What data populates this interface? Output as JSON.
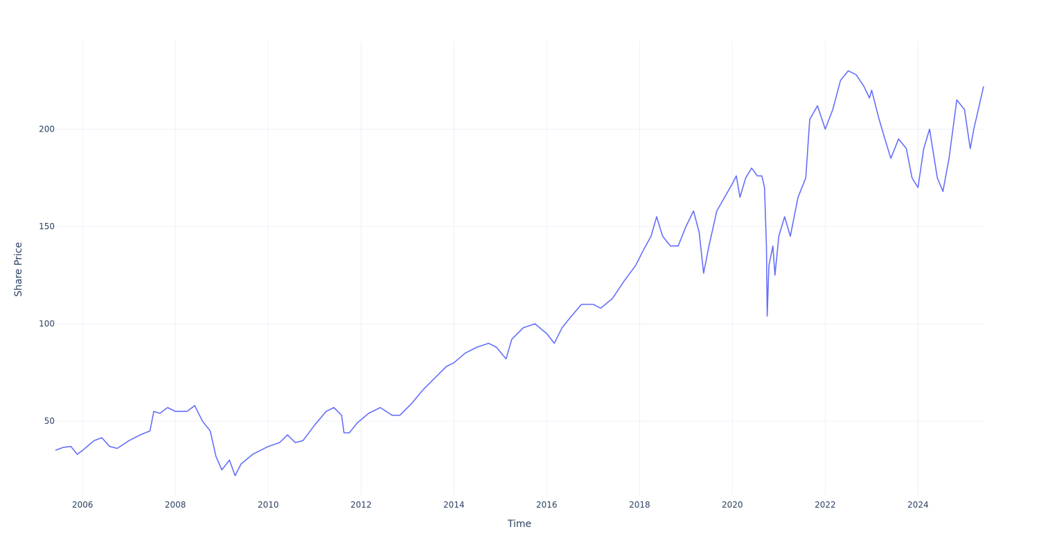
{
  "chart_data": {
    "type": "line",
    "title": "",
    "xlabel": "Time",
    "ylabel": "Share Price",
    "x_axis_type": "date",
    "xlim": [
      "2005-06-01",
      "2025-05-31"
    ],
    "ylim": [
      12,
      245
    ],
    "x_ticks": [
      "2006",
      "2008",
      "2010",
      "2012",
      "2014",
      "2016",
      "2018",
      "2020",
      "2022",
      "2024"
    ],
    "y_ticks": [
      50,
      100,
      150,
      200
    ],
    "grid": true,
    "legend": "none",
    "series": [
      {
        "color": "#636efa",
        "points": [
          [
            "2005-06-01",
            35
          ],
          [
            "2005-08-01",
            36.5
          ],
          [
            "2005-10-01",
            37
          ],
          [
            "2005-11-20",
            33
          ],
          [
            "2006-01-01",
            35
          ],
          [
            "2006-04-01",
            40
          ],
          [
            "2006-06-01",
            41.5
          ],
          [
            "2006-08-01",
            37
          ],
          [
            "2006-10-01",
            36
          ],
          [
            "2007-01-01",
            40
          ],
          [
            "2007-04-01",
            43
          ],
          [
            "2007-06-15",
            45
          ],
          [
            "2007-07-15",
            55
          ],
          [
            "2007-09-01",
            54
          ],
          [
            "2007-11-01",
            57
          ],
          [
            "2008-01-01",
            55
          ],
          [
            "2008-04-01",
            55
          ],
          [
            "2008-06-01",
            58
          ],
          [
            "2008-08-01",
            50
          ],
          [
            "2008-10-01",
            45
          ],
          [
            "2008-11-15",
            32
          ],
          [
            "2009-01-01",
            25
          ],
          [
            "2009-03-01",
            30
          ],
          [
            "2009-04-15",
            22
          ],
          [
            "2009-06-01",
            28
          ],
          [
            "2009-09-01",
            33
          ],
          [
            "2010-01-01",
            37
          ],
          [
            "2010-04-01",
            39
          ],
          [
            "2010-06-01",
            43
          ],
          [
            "2010-08-01",
            39
          ],
          [
            "2010-10-01",
            40
          ],
          [
            "2011-01-01",
            48
          ],
          [
            "2011-04-01",
            55
          ],
          [
            "2011-06-01",
            57
          ],
          [
            "2011-08-01",
            53
          ],
          [
            "2011-08-20",
            44
          ],
          [
            "2011-10-01",
            44
          ],
          [
            "2011-12-01",
            49
          ],
          [
            "2012-03-01",
            54
          ],
          [
            "2012-06-01",
            57
          ],
          [
            "2012-09-01",
            53
          ],
          [
            "2012-11-01",
            53
          ],
          [
            "2013-02-01",
            59
          ],
          [
            "2013-05-01",
            66
          ],
          [
            "2013-08-01",
            72
          ],
          [
            "2013-11-01",
            78
          ],
          [
            "2014-01-01",
            80
          ],
          [
            "2014-04-01",
            85
          ],
          [
            "2014-07-01",
            88
          ],
          [
            "2014-10-01",
            90
          ],
          [
            "2014-12-01",
            88
          ],
          [
            "2015-02-15",
            82
          ],
          [
            "2015-04-01",
            92
          ],
          [
            "2015-07-01",
            98
          ],
          [
            "2015-10-01",
            100
          ],
          [
            "2016-01-01",
            95
          ],
          [
            "2016-03-01",
            90
          ],
          [
            "2016-05-01",
            98
          ],
          [
            "2016-07-01",
            103
          ],
          [
            "2016-10-01",
            110
          ],
          [
            "2017-01-01",
            110
          ],
          [
            "2017-03-01",
            108
          ],
          [
            "2017-06-01",
            113
          ],
          [
            "2017-09-01",
            122
          ],
          [
            "2017-12-01",
            130
          ],
          [
            "2018-02-01",
            138
          ],
          [
            "2018-04-01",
            145
          ],
          [
            "2018-05-15",
            155
          ],
          [
            "2018-07-01",
            145
          ],
          [
            "2018-09-01",
            140
          ],
          [
            "2018-11-01",
            140
          ],
          [
            "2019-01-01",
            150
          ],
          [
            "2019-03-01",
            158
          ],
          [
            "2019-04-15",
            147
          ],
          [
            "2019-05-20",
            126
          ],
          [
            "2019-07-01",
            140
          ],
          [
            "2019-09-01",
            158
          ],
          [
            "2019-11-01",
            165
          ],
          [
            "2020-01-01",
            172
          ],
          [
            "2020-02-01",
            176
          ],
          [
            "2020-03-01",
            165
          ],
          [
            "2020-04-15",
            175
          ],
          [
            "2020-06-01",
            180
          ],
          [
            "2020-07-15",
            176
          ],
          [
            "2020-08-20",
            176
          ],
          [
            "2020-09-10",
            170
          ],
          [
            "2020-09-25",
            140
          ],
          [
            "2020-10-01",
            104
          ],
          [
            "2020-10-15",
            130
          ],
          [
            "2020-11-15",
            140
          ],
          [
            "2020-12-01",
            125
          ],
          [
            "2021-01-01",
            145
          ],
          [
            "2021-02-15",
            155
          ],
          [
            "2021-04-01",
            145
          ],
          [
            "2021-06-01",
            165
          ],
          [
            "2021-08-01",
            175
          ],
          [
            "2021-09-01",
            205
          ],
          [
            "2021-11-01",
            212
          ],
          [
            "2022-01-01",
            200
          ],
          [
            "2022-03-01",
            210
          ],
          [
            "2022-05-01",
            225
          ],
          [
            "2022-07-01",
            230
          ],
          [
            "2022-09-01",
            228
          ],
          [
            "2022-11-01",
            222
          ],
          [
            "2022-12-15",
            216
          ],
          [
            "2023-01-01",
            220
          ],
          [
            "2023-03-01",
            205
          ],
          [
            "2023-04-15",
            195
          ],
          [
            "2023-06-01",
            185
          ],
          [
            "2023-08-01",
            195
          ],
          [
            "2023-10-01",
            190
          ],
          [
            "2023-11-15",
            175
          ],
          [
            "2024-01-01",
            170
          ],
          [
            "2024-02-15",
            190
          ],
          [
            "2024-04-01",
            200
          ],
          [
            "2024-06-01",
            175
          ],
          [
            "2024-07-15",
            168
          ],
          [
            "2024-09-01",
            185
          ],
          [
            "2024-11-01",
            215
          ],
          [
            "2025-01-01",
            210
          ],
          [
            "2025-02-15",
            190
          ],
          [
            "2025-03-15",
            200
          ],
          [
            "2025-05-31",
            222
          ]
        ]
      }
    ]
  }
}
